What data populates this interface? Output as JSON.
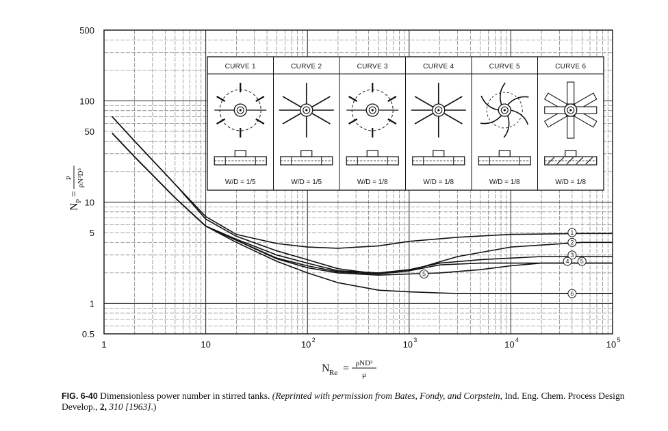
{
  "chart_data": {
    "type": "line",
    "x_scale": "log",
    "y_scale": "log",
    "xlim": [
      1,
      100000
    ],
    "ylim": [
      0.5,
      500
    ],
    "grid": true,
    "x_ticks": [
      {
        "value": 1,
        "base": "1",
        "exp": ""
      },
      {
        "value": 10,
        "base": "10",
        "exp": ""
      },
      {
        "value": 100,
        "base": "10",
        "exp": "2"
      },
      {
        "value": 1000,
        "base": "10",
        "exp": "3"
      },
      {
        "value": 10000,
        "base": "10",
        "exp": "4"
      },
      {
        "value": 100000,
        "base": "10",
        "exp": "5"
      }
    ],
    "y_ticks": [
      {
        "value": 500,
        "label": "500"
      },
      {
        "value": 100,
        "label": "100"
      },
      {
        "value": 50,
        "label": "50"
      },
      {
        "value": 10,
        "label": "10"
      },
      {
        "value": 5,
        "label": "5"
      },
      {
        "value": 1,
        "label": "1"
      },
      {
        "value": 0.5,
        "label": "0.5"
      }
    ],
    "xlabel": {
      "symbol": "N",
      "sub": "Re",
      "eq": "=",
      "num": "ρND²",
      "den": "μ"
    },
    "ylabel": {
      "symbol": "N",
      "sub": "P",
      "eq": "=",
      "num": "P",
      "den": "ρN³D⁵"
    },
    "series": [
      {
        "name": "1",
        "x": [
          1.2,
          2,
          5,
          10,
          20,
          50,
          100,
          200,
          500,
          1000,
          3000,
          10000,
          50000,
          100000
        ],
        "y": [
          70,
          40,
          15,
          7.2,
          4.8,
          3.9,
          3.6,
          3.5,
          3.7,
          4.1,
          4.5,
          4.8,
          4.9,
          4.9
        ]
      },
      {
        "name": "2",
        "x": [
          1.2,
          2,
          5,
          10,
          20,
          50,
          100,
          200,
          500,
          1000,
          3000,
          10000,
          50000,
          100000
        ],
        "y": [
          70,
          40,
          15,
          6.8,
          4.6,
          3.3,
          2.7,
          2.2,
          1.95,
          2.1,
          2.9,
          3.6,
          4.0,
          4.0
        ]
      },
      {
        "name": "3",
        "x": [
          1.2,
          2,
          5,
          10,
          20,
          50,
          100,
          200,
          500,
          1000,
          2000,
          5000,
          20000,
          100000
        ],
        "y": [
          48,
          28,
          11,
          5.8,
          4.3,
          3.0,
          2.5,
          2.1,
          2.0,
          2.15,
          2.5,
          2.7,
          2.9,
          2.9
        ]
      },
      {
        "name": "4",
        "x": [
          1.2,
          2,
          5,
          10,
          20,
          50,
          100,
          200,
          500,
          1000,
          2000,
          5000,
          20000,
          100000
        ],
        "y": [
          48,
          28,
          11,
          5.8,
          4.2,
          2.8,
          2.35,
          2.05,
          1.95,
          2.1,
          2.4,
          2.5,
          2.5,
          2.5
        ]
      },
      {
        "name": "5",
        "x": [
          1.2,
          2,
          5,
          10,
          20,
          50,
          100,
          200,
          500,
          1000,
          2000,
          5000,
          10000,
          20000,
          100000
        ],
        "y": [
          48,
          28,
          11,
          5.8,
          4.2,
          2.75,
          2.25,
          2.0,
          1.9,
          1.95,
          2.0,
          2.15,
          2.35,
          2.5,
          2.5
        ]
      },
      {
        "name": "6",
        "x": [
          1.2,
          2,
          5,
          10,
          20,
          50,
          100,
          200,
          500,
          1000,
          3000,
          10000,
          100000
        ],
        "y": [
          48,
          28,
          11,
          5.8,
          4.0,
          2.6,
          2.0,
          1.6,
          1.35,
          1.3,
          1.25,
          1.25,
          1.25
        ]
      }
    ],
    "curve_labels": [
      {
        "name": "1",
        "x": 40000,
        "y": 5.0
      },
      {
        "name": "2",
        "x": 40000,
        "y": 4.0
      },
      {
        "name": "3",
        "x": 40000,
        "y": 3.0
      },
      {
        "name": "4",
        "x": 36000,
        "y": 2.6
      },
      {
        "name": "5",
        "x": 50000,
        "y": 2.6
      },
      {
        "name": "5",
        "x": 1400,
        "y": 1.95
      },
      {
        "name": "6",
        "x": 40000,
        "y": 1.25
      }
    ],
    "legend": {
      "placement": "top-inside",
      "items": [
        {
          "header": "CURVE 1",
          "impeller": "flat-blade turbine with disk",
          "wd": "W/D = 1/5"
        },
        {
          "header": "CURVE 2",
          "impeller": "flat-blade turbine",
          "wd": "W/D = 1/5"
        },
        {
          "header": "CURVE 3",
          "impeller": "flat-blade turbine with disk",
          "wd": "W/D = 1/8"
        },
        {
          "header": "CURVE 4",
          "impeller": "flat-blade turbine",
          "wd": "W/D = 1/8"
        },
        {
          "header": "CURVE 5",
          "impeller": "curved-blade turbine",
          "wd": "W/D = 1/8"
        },
        {
          "header": "CURVE 6",
          "impeller": "pitched-blade turbine",
          "wd": "W/D = 1/8"
        }
      ]
    }
  },
  "caption": {
    "fig_label": "FIG. 6-40",
    "text": "Dimensionless power number in stirred tanks.",
    "credit_intro": "(Reprinted with permission from Bates, Fondy, and Corpstein,",
    "journal": "Ind. Eng. Chem. Process Design Develop.,",
    "volume": "2,",
    "pages": "310",
    "year": "[1963]",
    "closing": ".)"
  }
}
